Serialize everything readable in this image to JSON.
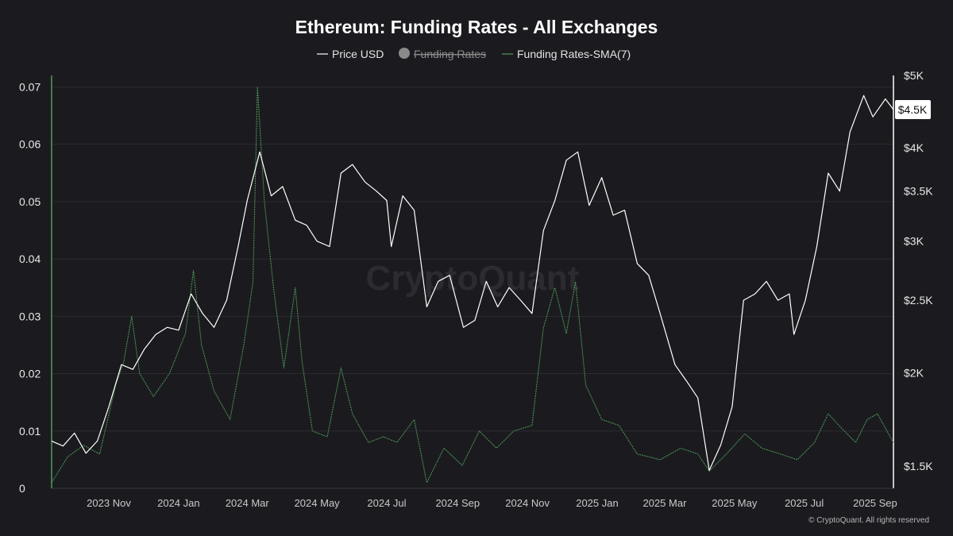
{
  "chart_data": {
    "type": "line",
    "title": "Ethereum: Funding Rates - All Exchanges",
    "watermark": "CryptoQuant",
    "footer": "© CryptoQuant. All rights reserved",
    "legend": [
      {
        "name": "Price USD",
        "color": "#ffffff",
        "enabled": true
      },
      {
        "name": "Funding Rates",
        "color": "#8a8a8a",
        "enabled": false
      },
      {
        "name": "Funding Rates-SMA(7)",
        "color": "#4e9c5a",
        "enabled": true
      }
    ],
    "legend_position": "top-center",
    "x_range": [
      "2023-09-12",
      "2025-09-17"
    ],
    "x_ticks": [
      {
        "date": "2023-11-01",
        "label": "2023 Nov"
      },
      {
        "date": "2024-01-01",
        "label": "2024 Jan"
      },
      {
        "date": "2024-03-01",
        "label": "2024 Mar"
      },
      {
        "date": "2024-05-01",
        "label": "2024 May"
      },
      {
        "date": "2024-07-01",
        "label": "2024 Jul"
      },
      {
        "date": "2024-09-01",
        "label": "2024 Sep"
      },
      {
        "date": "2024-11-01",
        "label": "2024 Nov"
      },
      {
        "date": "2025-01-01",
        "label": "2025 Jan"
      },
      {
        "date": "2025-03-01",
        "label": "2025 Mar"
      },
      {
        "date": "2025-05-01",
        "label": "2025 May"
      },
      {
        "date": "2025-07-01",
        "label": "2025 Jul"
      },
      {
        "date": "2025-09-01",
        "label": "2025 Sep"
      }
    ],
    "y_left": {
      "range": [
        0,
        0.072
      ],
      "ticks": [
        {
          "value": 0,
          "label": "0"
        },
        {
          "value": 0.01,
          "label": "0.01"
        },
        {
          "value": 0.02,
          "label": "0.02"
        },
        {
          "value": 0.03,
          "label": "0.03"
        },
        {
          "value": 0.04,
          "label": "0.04"
        },
        {
          "value": 0.05,
          "label": "0.05"
        },
        {
          "value": 0.06,
          "label": "0.06"
        },
        {
          "value": 0.07,
          "label": "0.07"
        }
      ]
    },
    "y_right": {
      "scale": "log",
      "range": [
        1400,
        5000
      ],
      "ticks": [
        {
          "value": 1500,
          "label": "$1.5K"
        },
        {
          "value": 2000,
          "label": "$2K"
        },
        {
          "value": 2500,
          "label": "$2.5K"
        },
        {
          "value": 3000,
          "label": "$3K"
        },
        {
          "value": 3500,
          "label": "$3.5K"
        },
        {
          "value": 4000,
          "label": "$4K"
        },
        {
          "value": 5000,
          "label": "$5K"
        }
      ],
      "last_value_label": "$4.5K",
      "last_value": 4500
    },
    "grid": "horizontal",
    "series": [
      {
        "name": "Price USD",
        "axis": "right",
        "color": "#ffffff",
        "points": [
          [
            "2023-09-12",
            1620
          ],
          [
            "2023-09-22",
            1595
          ],
          [
            "2023-10-02",
            1660
          ],
          [
            "2023-10-12",
            1560
          ],
          [
            "2023-10-22",
            1620
          ],
          [
            "2023-11-01",
            1800
          ],
          [
            "2023-11-12",
            2050
          ],
          [
            "2023-11-22",
            2020
          ],
          [
            "2023-12-02",
            2150
          ],
          [
            "2023-12-12",
            2250
          ],
          [
            "2023-12-22",
            2300
          ],
          [
            "2024-01-01",
            2280
          ],
          [
            "2024-01-12",
            2550
          ],
          [
            "2024-01-22",
            2400
          ],
          [
            "2024-02-01",
            2300
          ],
          [
            "2024-02-12",
            2500
          ],
          [
            "2024-02-22",
            2950
          ],
          [
            "2024-03-01",
            3400
          ],
          [
            "2024-03-12",
            3950
          ],
          [
            "2024-03-22",
            3450
          ],
          [
            "2024-04-01",
            3550
          ],
          [
            "2024-04-12",
            3200
          ],
          [
            "2024-04-22",
            3150
          ],
          [
            "2024-05-01",
            3000
          ],
          [
            "2024-05-12",
            2950
          ],
          [
            "2024-05-22",
            3700
          ],
          [
            "2024-06-01",
            3800
          ],
          [
            "2024-06-12",
            3600
          ],
          [
            "2024-06-22",
            3500
          ],
          [
            "2024-07-01",
            3400
          ],
          [
            "2024-07-05",
            2950
          ],
          [
            "2024-07-15",
            3450
          ],
          [
            "2024-07-25",
            3300
          ],
          [
            "2024-08-05",
            2450
          ],
          [
            "2024-08-15",
            2650
          ],
          [
            "2024-08-25",
            2700
          ],
          [
            "2024-09-06",
            2300
          ],
          [
            "2024-09-16",
            2350
          ],
          [
            "2024-09-26",
            2650
          ],
          [
            "2024-10-06",
            2450
          ],
          [
            "2024-10-16",
            2600
          ],
          [
            "2024-10-26",
            2500
          ],
          [
            "2024-11-05",
            2400
          ],
          [
            "2024-11-15",
            3100
          ],
          [
            "2024-11-25",
            3400
          ],
          [
            "2024-12-05",
            3850
          ],
          [
            "2024-12-15",
            3950
          ],
          [
            "2024-12-25",
            3350
          ],
          [
            "2025-01-05",
            3650
          ],
          [
            "2025-01-15",
            3250
          ],
          [
            "2025-01-25",
            3300
          ],
          [
            "2025-02-05",
            2800
          ],
          [
            "2025-02-15",
            2700
          ],
          [
            "2025-02-25",
            2400
          ],
          [
            "2025-03-10",
            2050
          ],
          [
            "2025-03-20",
            1950
          ],
          [
            "2025-03-30",
            1850
          ],
          [
            "2025-04-09",
            1480
          ],
          [
            "2025-04-19",
            1600
          ],
          [
            "2025-04-29",
            1800
          ],
          [
            "2025-05-09",
            2500
          ],
          [
            "2025-05-19",
            2550
          ],
          [
            "2025-05-29",
            2650
          ],
          [
            "2025-06-08",
            2500
          ],
          [
            "2025-06-18",
            2550
          ],
          [
            "2025-06-22",
            2250
          ],
          [
            "2025-07-02",
            2500
          ],
          [
            "2025-07-12",
            2950
          ],
          [
            "2025-07-22",
            3700
          ],
          [
            "2025-08-01",
            3500
          ],
          [
            "2025-08-10",
            4200
          ],
          [
            "2025-08-22",
            4700
          ],
          [
            "2025-08-30",
            4400
          ],
          [
            "2025-09-10",
            4650
          ],
          [
            "2025-09-17",
            4500
          ]
        ]
      },
      {
        "name": "Funding Rates-SMA(7)",
        "axis": "left",
        "color": "#4e9c5a",
        "points": [
          [
            "2023-09-12",
            0.001
          ],
          [
            "2023-09-26",
            0.0055
          ],
          [
            "2023-10-10",
            0.0075
          ],
          [
            "2023-10-24",
            0.006
          ],
          [
            "2023-11-07",
            0.018
          ],
          [
            "2023-11-14",
            0.022
          ],
          [
            "2023-11-21",
            0.03
          ],
          [
            "2023-11-28",
            0.02
          ],
          [
            "2023-12-10",
            0.016
          ],
          [
            "2023-12-24",
            0.02
          ],
          [
            "2024-01-07",
            0.027
          ],
          [
            "2024-01-14",
            0.038
          ],
          [
            "2024-01-21",
            0.025
          ],
          [
            "2024-02-01",
            0.017
          ],
          [
            "2024-02-15",
            0.012
          ],
          [
            "2024-02-27",
            0.025
          ],
          [
            "2024-03-06",
            0.036
          ],
          [
            "2024-03-10",
            0.07
          ],
          [
            "2024-03-16",
            0.05
          ],
          [
            "2024-03-24",
            0.035
          ],
          [
            "2024-04-02",
            0.021
          ],
          [
            "2024-04-12",
            0.035
          ],
          [
            "2024-04-18",
            0.022
          ],
          [
            "2024-04-27",
            0.01
          ],
          [
            "2024-05-10",
            0.009
          ],
          [
            "2024-05-22",
            0.021
          ],
          [
            "2024-06-01",
            0.013
          ],
          [
            "2024-06-15",
            0.008
          ],
          [
            "2024-06-28",
            0.009
          ],
          [
            "2024-07-10",
            0.008
          ],
          [
            "2024-07-25",
            0.012
          ],
          [
            "2024-08-05",
            0.001
          ],
          [
            "2024-08-20",
            0.007
          ],
          [
            "2024-09-05",
            0.004
          ],
          [
            "2024-09-20",
            0.01
          ],
          [
            "2024-10-05",
            0.007
          ],
          [
            "2024-10-20",
            0.01
          ],
          [
            "2024-11-05",
            0.011
          ],
          [
            "2024-11-15",
            0.028
          ],
          [
            "2024-11-25",
            0.035
          ],
          [
            "2024-12-05",
            0.027
          ],
          [
            "2024-12-13",
            0.036
          ],
          [
            "2024-12-22",
            0.018
          ],
          [
            "2025-01-05",
            0.012
          ],
          [
            "2025-01-20",
            0.011
          ],
          [
            "2025-02-05",
            0.006
          ],
          [
            "2025-02-25",
            0.005
          ],
          [
            "2025-03-15",
            0.007
          ],
          [
            "2025-03-30",
            0.006
          ],
          [
            "2025-04-09",
            0.003
          ],
          [
            "2025-04-24",
            0.006
          ],
          [
            "2025-05-10",
            0.0095
          ],
          [
            "2025-05-25",
            0.007
          ],
          [
            "2025-06-10",
            0.006
          ],
          [
            "2025-06-25",
            0.005
          ],
          [
            "2025-07-10",
            0.008
          ],
          [
            "2025-07-22",
            0.013
          ],
          [
            "2025-08-05",
            0.01
          ],
          [
            "2025-08-15",
            0.008
          ],
          [
            "2025-08-25",
            0.012
          ],
          [
            "2025-09-03",
            0.013
          ],
          [
            "2025-09-17",
            0.008
          ]
        ]
      }
    ]
  }
}
